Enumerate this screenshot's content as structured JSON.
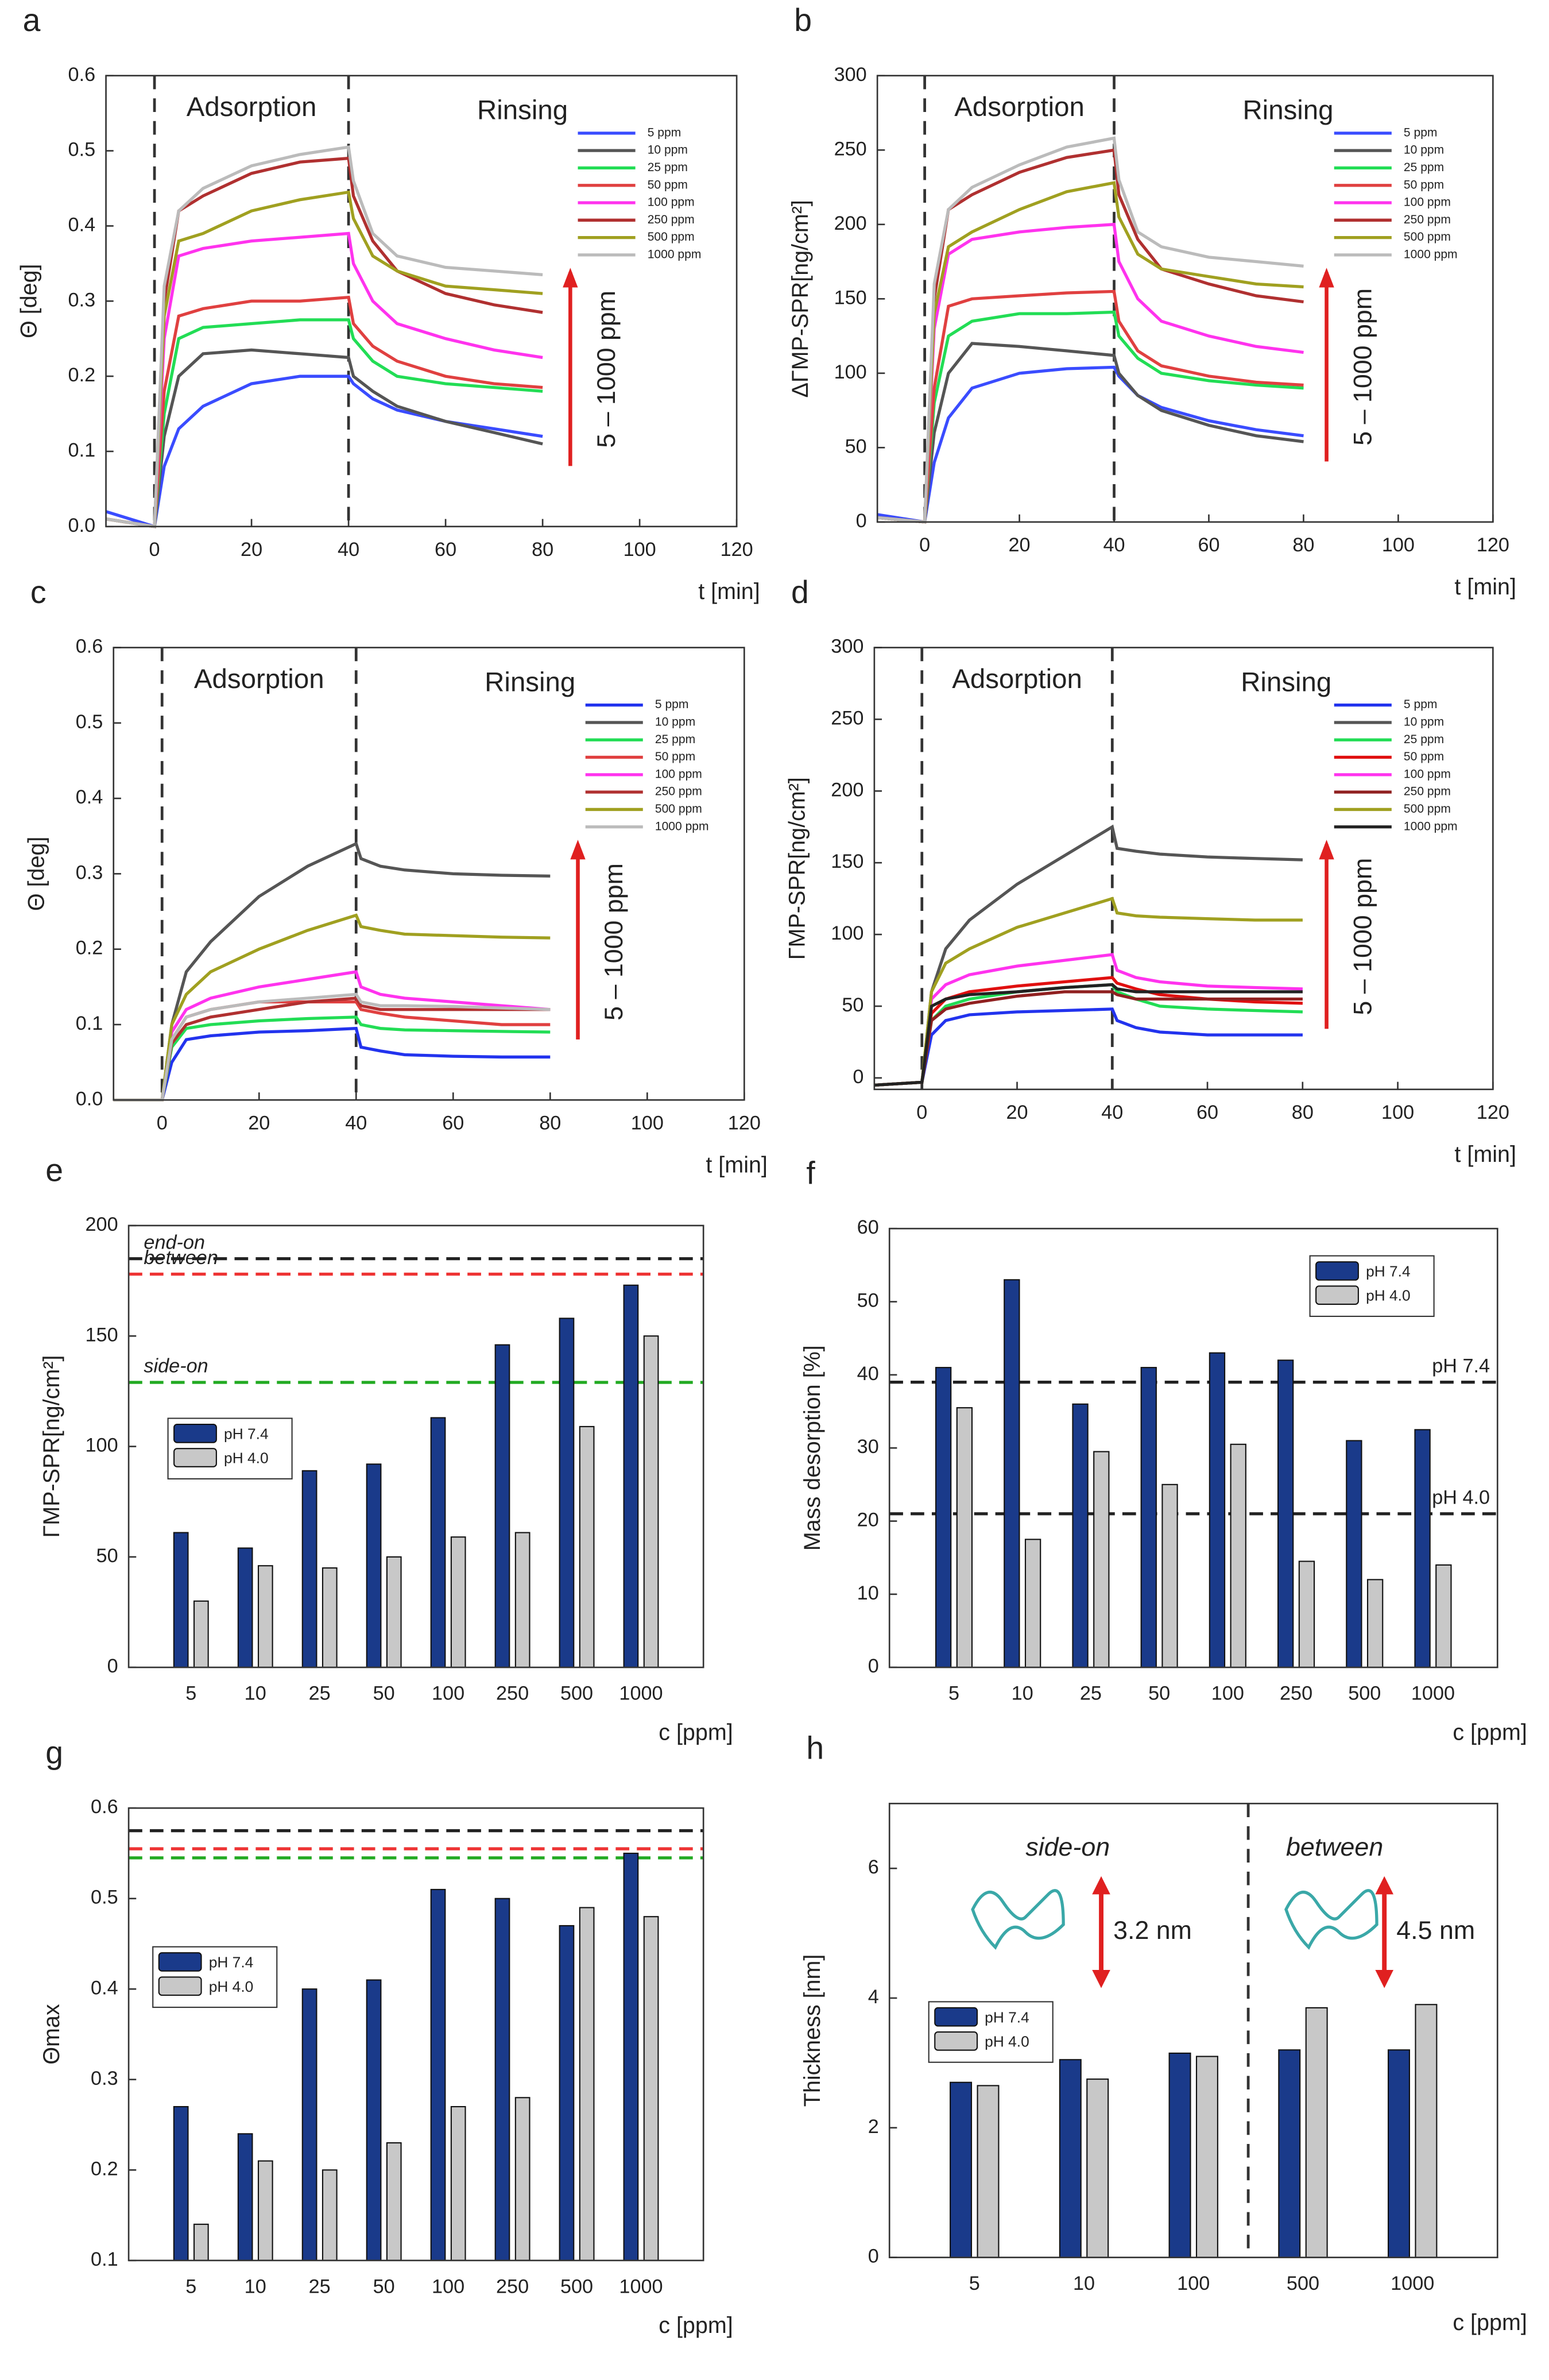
{
  "chart_data": [
    {
      "type": "line",
      "panel_label": "a",
      "ylabel": "Θ [deg]",
      "xlabel": "t [min]",
      "annotations": [
        "Adsorption",
        "Rinsing"
      ],
      "arrow_label": "5 – 1000 ppm",
      "xlim": [
        -10,
        120
      ],
      "xticks": [
        0,
        20,
        40,
        60,
        80,
        100,
        120
      ],
      "ylim": [
        0,
        0.6
      ],
      "yticks": [
        {
          "value": 0,
          "label": "0.0"
        },
        0.1,
        0.2,
        0.3,
        0.4,
        0.5,
        0.6
      ],
      "vlines": [
        0,
        40
      ],
      "legend": "upper right",
      "x": [
        -10,
        0,
        2,
        5,
        10,
        20,
        30,
        40,
        41,
        45,
        50,
        60,
        70,
        80
      ],
      "series": [
        {
          "name": "5 ppm",
          "color": "#3a4cff",
          "values": [
            0.02,
            0,
            0.08,
            0.13,
            0.16,
            0.19,
            0.2,
            0.2,
            0.19,
            0.17,
            0.155,
            0.14,
            0.13,
            0.12
          ]
        },
        {
          "name": "10 ppm",
          "color": "#555555",
          "values": [
            0.01,
            0,
            0.12,
            0.2,
            0.23,
            0.235,
            0.23,
            0.225,
            0.2,
            0.18,
            0.16,
            0.14,
            0.125,
            0.11
          ]
        },
        {
          "name": "25 ppm",
          "color": "#22dd55",
          "values": [
            0.01,
            0,
            0.15,
            0.25,
            0.265,
            0.27,
            0.275,
            0.275,
            0.25,
            0.22,
            0.2,
            0.19,
            0.185,
            0.18
          ]
        },
        {
          "name": "50 ppm",
          "color": "#e04040",
          "values": [
            0.01,
            0,
            0.18,
            0.28,
            0.29,
            0.3,
            0.3,
            0.305,
            0.27,
            0.24,
            0.22,
            0.2,
            0.19,
            0.185
          ]
        },
        {
          "name": "100 ppm",
          "color": "#ff33ee",
          "values": [
            0.01,
            0,
            0.25,
            0.36,
            0.37,
            0.38,
            0.385,
            0.39,
            0.35,
            0.3,
            0.27,
            0.25,
            0.235,
            0.225
          ]
        },
        {
          "name": "250 ppm",
          "color": "#b03030",
          "values": [
            0.01,
            0,
            0.3,
            0.42,
            0.44,
            0.47,
            0.485,
            0.49,
            0.44,
            0.38,
            0.34,
            0.31,
            0.295,
            0.285
          ]
        },
        {
          "name": "500 ppm",
          "color": "#a0a020",
          "values": [
            0.01,
            0,
            0.28,
            0.38,
            0.39,
            0.42,
            0.435,
            0.445,
            0.41,
            0.36,
            0.34,
            0.32,
            0.315,
            0.31
          ]
        },
        {
          "name": "1000 ppm",
          "color": "#bbbbbb",
          "values": [
            0.01,
            0,
            0.32,
            0.42,
            0.45,
            0.48,
            0.495,
            0.505,
            0.46,
            0.39,
            0.36,
            0.345,
            0.34,
            0.335
          ]
        }
      ]
    },
    {
      "type": "line",
      "panel_label": "b",
      "ylabel": "ΔΓMP-SPR[ng/cm²]",
      "xlabel": "t [min]",
      "annotations": [
        "Adsorption",
        "Rinsing"
      ],
      "arrow_label": "5 – 1000 ppm",
      "xlim": [
        -10,
        120
      ],
      "xticks": [
        0,
        20,
        40,
        60,
        80,
        100,
        120
      ],
      "ylim": [
        0,
        300
      ],
      "yticks": [
        0,
        50,
        100,
        150,
        200,
        250,
        300
      ],
      "vlines": [
        0,
        40
      ],
      "legend": "upper right",
      "x": [
        -10,
        0,
        2,
        5,
        10,
        20,
        30,
        40,
        41,
        45,
        50,
        60,
        70,
        80
      ],
      "series": [
        {
          "name": "5 ppm",
          "color": "#3a4cff",
          "values": [
            5,
            0,
            40,
            70,
            90,
            100,
            103,
            104,
            98,
            85,
            77,
            68,
            62,
            58
          ]
        },
        {
          "name": "10 ppm",
          "color": "#555555",
          "values": [
            3,
            0,
            60,
            100,
            120,
            118,
            115,
            112,
            100,
            85,
            75,
            65,
            58,
            54
          ]
        },
        {
          "name": "25 ppm",
          "color": "#22dd55",
          "values": [
            3,
            0,
            80,
            125,
            135,
            140,
            140,
            141,
            125,
            110,
            100,
            95,
            92,
            90
          ]
        },
        {
          "name": "50 ppm",
          "color": "#e04040",
          "values": [
            3,
            0,
            90,
            145,
            150,
            152,
            154,
            155,
            135,
            115,
            105,
            98,
            94,
            92
          ]
        },
        {
          "name": "100 ppm",
          "color": "#ff33ee",
          "values": [
            3,
            0,
            130,
            180,
            190,
            195,
            198,
            200,
            175,
            150,
            135,
            125,
            118,
            114
          ]
        },
        {
          "name": "250 ppm",
          "color": "#b03030",
          "values": [
            3,
            0,
            150,
            210,
            220,
            235,
            245,
            250,
            220,
            190,
            170,
            160,
            152,
            148
          ]
        },
        {
          "name": "500 ppm",
          "color": "#a0a020",
          "values": [
            3,
            0,
            140,
            185,
            195,
            210,
            222,
            228,
            205,
            180,
            170,
            165,
            160,
            158
          ]
        },
        {
          "name": "1000 ppm",
          "color": "#bbbbbb",
          "values": [
            3,
            0,
            160,
            210,
            225,
            240,
            252,
            258,
            230,
            195,
            185,
            178,
            175,
            172
          ]
        }
      ]
    },
    {
      "type": "line",
      "panel_label": "c",
      "ylabel": "Θ [deg]",
      "xlabel": "t [min]",
      "annotations": [
        "Adsorption",
        "Rinsing"
      ],
      "arrow_label": "5 – 1000 ppm",
      "xlim": [
        -10,
        120
      ],
      "xticks": [
        0,
        20,
        40,
        60,
        80,
        100,
        120
      ],
      "ylim": [
        0,
        0.6
      ],
      "yticks": [
        {
          "value": 0,
          "label": "0.0"
        },
        0.1,
        0.2,
        0.3,
        0.4,
        0.5,
        0.6
      ],
      "vlines": [
        0,
        40
      ],
      "legend": "upper right",
      "x": [
        -10,
        0,
        2,
        5,
        10,
        20,
        30,
        40,
        41,
        45,
        50,
        60,
        70,
        80
      ],
      "series": [
        {
          "name": "5 ppm",
          "color": "#2233ee",
          "values": [
            0,
            0,
            0.05,
            0.08,
            0.085,
            0.09,
            0.092,
            0.095,
            0.07,
            0.065,
            0.06,
            0.058,
            0.057,
            0.057
          ]
        },
        {
          "name": "10 ppm",
          "color": "#555555",
          "values": [
            0,
            0,
            0.1,
            0.17,
            0.21,
            0.27,
            0.31,
            0.34,
            0.32,
            0.31,
            0.305,
            0.3,
            0.298,
            0.297
          ]
        },
        {
          "name": "25 ppm",
          "color": "#22dd55",
          "values": [
            0,
            0,
            0.07,
            0.095,
            0.1,
            0.105,
            0.108,
            0.11,
            0.1,
            0.095,
            0.093,
            0.092,
            0.091,
            0.09
          ]
        },
        {
          "name": "50 ppm",
          "color": "#e04040",
          "values": [
            0,
            0,
            0.08,
            0.11,
            0.12,
            0.13,
            0.13,
            0.13,
            0.12,
            0.115,
            0.11,
            0.105,
            0.1,
            0.1
          ]
        },
        {
          "name": "100 ppm",
          "color": "#ff33ee",
          "values": [
            0,
            0,
            0.09,
            0.12,
            0.135,
            0.15,
            0.16,
            0.17,
            0.15,
            0.14,
            0.135,
            0.13,
            0.125,
            0.12
          ]
        },
        {
          "name": "250 ppm",
          "color": "#b03030",
          "values": [
            0,
            0,
            0.075,
            0.1,
            0.11,
            0.12,
            0.13,
            0.135,
            0.125,
            0.12,
            0.12,
            0.12,
            0.12,
            0.12
          ]
        },
        {
          "name": "500 ppm",
          "color": "#a0a020",
          "values": [
            0,
            0,
            0.1,
            0.14,
            0.17,
            0.2,
            0.225,
            0.245,
            0.23,
            0.225,
            0.22,
            0.218,
            0.216,
            0.215
          ]
        },
        {
          "name": "1000 ppm",
          "color": "#bbbbbb",
          "values": [
            0,
            0,
            0.08,
            0.11,
            0.12,
            0.13,
            0.135,
            0.14,
            0.13,
            0.125,
            0.125,
            0.124,
            0.122,
            0.12
          ]
        }
      ]
    },
    {
      "type": "line",
      "panel_label": "d",
      "ylabel": "ΓMP-SPR[ng/cm²]",
      "xlabel": "t [min]",
      "annotations": [
        "Adsorption",
        "Rinsing"
      ],
      "arrow_label": "5 – 1000 ppm",
      "xlim": [
        -10,
        120
      ],
      "xticks": [
        0,
        20,
        40,
        60,
        80,
        100,
        120
      ],
      "ylim": [
        -8,
        300
      ],
      "yticks": [
        0,
        50,
        100,
        150,
        200,
        250,
        300
      ],
      "vlines": [
        0,
        40
      ],
      "legend": "upper right",
      "x": [
        -10,
        0,
        2,
        5,
        10,
        20,
        30,
        40,
        41,
        45,
        50,
        60,
        70,
        80
      ],
      "series": [
        {
          "name": "5 ppm",
          "color": "#2233ee",
          "values": [
            -5,
            -3,
            30,
            40,
            44,
            46,
            47,
            48,
            40,
            35,
            32,
            30,
            30,
            30
          ]
        },
        {
          "name": "10 ppm",
          "color": "#555555",
          "values": [
            -5,
            -3,
            60,
            90,
            110,
            135,
            155,
            175,
            160,
            158,
            156,
            154,
            153,
            152
          ]
        },
        {
          "name": "25 ppm",
          "color": "#22dd55",
          "values": [
            -5,
            -3,
            40,
            50,
            55,
            60,
            63,
            65,
            60,
            55,
            50,
            48,
            47,
            46
          ]
        },
        {
          "name": "50 ppm",
          "color": "#e01010",
          "values": [
            -5,
            -3,
            45,
            55,
            60,
            64,
            67,
            70,
            66,
            62,
            58,
            55,
            53,
            52
          ]
        },
        {
          "name": "100 ppm",
          "color": "#ff33ee",
          "values": [
            -5,
            -3,
            55,
            65,
            72,
            78,
            82,
            86,
            75,
            70,
            67,
            64,
            63,
            62
          ]
        },
        {
          "name": "250 ppm",
          "color": "#902020",
          "values": [
            -5,
            -3,
            40,
            48,
            52,
            57,
            60,
            60,
            58,
            55,
            55,
            55,
            55,
            55
          ]
        },
        {
          "name": "500 ppm",
          "color": "#a0a020",
          "values": [
            -5,
            -3,
            60,
            80,
            90,
            105,
            115,
            125,
            115,
            113,
            112,
            111,
            110,
            110
          ]
        },
        {
          "name": "1000 ppm",
          "color": "#222222",
          "values": [
            -5,
            -3,
            50,
            55,
            58,
            60,
            63,
            65,
            62,
            60,
            60,
            60,
            60,
            60
          ]
        }
      ]
    },
    {
      "type": "bar",
      "panel_label": "e",
      "ylabel": "ΓMP-SPR[ng/cm²]",
      "xlabel": "c [ppm]",
      "ylim": [
        0,
        200
      ],
      "yticks": [
        0,
        50,
        100,
        150,
        200
      ],
      "legend": "center left",
      "hline_label_side": "left",
      "categories": [
        "5",
        "10",
        "25",
        "50",
        "100",
        "250",
        "500",
        "1000"
      ],
      "hlines": [
        {
          "value": 185,
          "label": "end-on",
          "color": "#222222"
        },
        {
          "value": 178,
          "label": "between",
          "color": "#ee3333"
        },
        {
          "value": 129,
          "label": "side-on",
          "color": "#22aa22"
        }
      ],
      "series": [
        {
          "name": "pH 7.4",
          "color": "#1a3a8a",
          "values": [
            61,
            54,
            89,
            92,
            113,
            146,
            158,
            173
          ]
        },
        {
          "name": "pH 4.0",
          "color": "#c8c8c8",
          "values": [
            30,
            46,
            45,
            50,
            59,
            61,
            109,
            150
          ]
        }
      ]
    },
    {
      "type": "bar",
      "panel_label": "f",
      "ylabel": "Mass desorption [%]",
      "xlabel": "c [ppm]",
      "ylim": [
        0,
        60
      ],
      "yticks": [
        0,
        10,
        20,
        30,
        40,
        50,
        60
      ],
      "legend": "upper right",
      "hline_label_side": "right",
      "categories": [
        "5",
        "10",
        "25",
        "50",
        "100",
        "250",
        "500",
        "1000"
      ],
      "hlines": [
        {
          "value": 39,
          "label": "pH 7.4",
          "color": "#222222"
        },
        {
          "value": 21,
          "label": "pH 4.0",
          "color": "#222222"
        }
      ],
      "series": [
        {
          "name": "pH 7.4",
          "color": "#1a3a8a",
          "values": [
            41,
            53,
            36,
            41,
            43,
            42,
            31,
            32.5
          ]
        },
        {
          "name": "pH 4.0",
          "color": "#c8c8c8",
          "values": [
            35.5,
            17.5,
            29.5,
            25,
            30.5,
            14.5,
            12,
            14
          ]
        }
      ]
    },
    {
      "type": "bar",
      "panel_label": "g",
      "ylabel": "Θmax",
      "xlabel": "c [ppm]",
      "ylim": [
        0.1,
        0.6
      ],
      "yticks": [
        0.1,
        0.2,
        0.3,
        0.4,
        0.5,
        0.6
      ],
      "legend": "upper left",
      "categories": [
        "5",
        "10",
        "25",
        "50",
        "100",
        "250",
        "500",
        "1000"
      ],
      "hlines": [
        {
          "value": 0.575,
          "color": "#222222"
        },
        {
          "value": 0.555,
          "color": "#ee3333"
        },
        {
          "value": 0.545,
          "color": "#22aa22"
        }
      ],
      "series": [
        {
          "name": "pH 7.4",
          "color": "#1a3a8a",
          "values": [
            0.27,
            0.24,
            0.4,
            0.41,
            0.51,
            0.5,
            0.47,
            0.55
          ]
        },
        {
          "name": "pH 4.0",
          "color": "#c8c8c8",
          "values": [
            0.14,
            0.21,
            0.2,
            0.23,
            0.27,
            0.28,
            0.49,
            0.48
          ]
        }
      ]
    },
    {
      "type": "bar",
      "panel_label": "h",
      "ylabel": "Thickness [nm]",
      "xlabel": "c [ppm]",
      "ylim": [
        0,
        7
      ],
      "yticks": [
        0,
        2,
        4,
        6
      ],
      "legend": "center left",
      "categories": [
        "5",
        "10",
        "100",
        "500",
        "1000"
      ],
      "annotations": [
        "side-on",
        "between",
        "3.2 nm",
        "4.5 nm"
      ],
      "series": [
        {
          "name": "pH 7.4",
          "color": "#1a3a8a",
          "values": [
            2.7,
            3.05,
            3.15,
            3.2,
            3.2
          ]
        },
        {
          "name": "pH 4.0",
          "color": "#c8c8c8",
          "values": [
            2.65,
            2.75,
            3.1,
            3.85,
            3.9
          ]
        }
      ]
    }
  ]
}
